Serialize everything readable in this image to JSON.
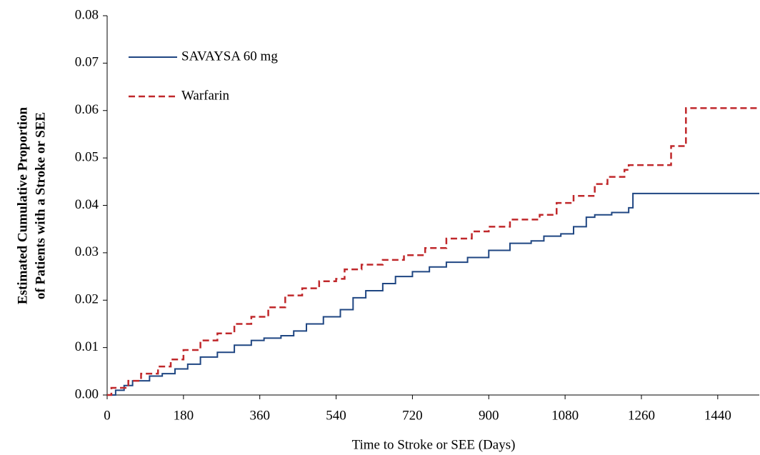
{
  "chart_data": {
    "type": "line",
    "step": true,
    "x_label": "Time to Stroke or SEE (Days)",
    "y_label": [
      "Estimated Cumulative Proportion",
      "of Patients with a Stroke or SEE"
    ],
    "xlim": [
      0,
      1538
    ],
    "xticks": [
      0,
      180,
      360,
      540,
      720,
      900,
      1080,
      1260,
      1440
    ],
    "ylim": [
      0,
      0.08
    ],
    "yticks": [
      {
        "value": 0,
        "label": "0.00"
      },
      0.01,
      0.02,
      0.03,
      0.04,
      0.05,
      0.06,
      0.07,
      0.08
    ],
    "legend": "upper left",
    "series": [
      {
        "name": "SAVAYSA 60 mg",
        "color": "#1f4682",
        "dash": false,
        "x": [
          0,
          20,
          40,
          60,
          100,
          130,
          160,
          190,
          220,
          260,
          300,
          340,
          370,
          410,
          440,
          470,
          510,
          550,
          580,
          610,
          650,
          680,
          720,
          760,
          800,
          850,
          900,
          950,
          1000,
          1030,
          1070,
          1100,
          1130,
          1150,
          1190,
          1230,
          1240,
          1538
        ],
        "values": [
          0,
          0.001,
          0.002,
          0.003,
          0.004,
          0.0045,
          0.0055,
          0.0065,
          0.008,
          0.009,
          0.0105,
          0.0115,
          0.012,
          0.0125,
          0.0135,
          0.015,
          0.0165,
          0.018,
          0.0205,
          0.022,
          0.0235,
          0.025,
          0.026,
          0.027,
          0.028,
          0.029,
          0.0305,
          0.032,
          0.0325,
          0.0335,
          0.034,
          0.0355,
          0.0375,
          0.038,
          0.0385,
          0.0395,
          0.0425,
          0.0425
        ]
      },
      {
        "name": "Warfarin",
        "color": "#c0282b",
        "dash": true,
        "x": [
          0,
          10,
          50,
          80,
          120,
          150,
          180,
          220,
          260,
          300,
          340,
          380,
          420,
          460,
          500,
          540,
          560,
          600,
          650,
          700,
          750,
          800,
          860,
          900,
          950,
          1020,
          1060,
          1100,
          1150,
          1180,
          1220,
          1230,
          1330,
          1365,
          1538
        ],
        "values": [
          0,
          0.0015,
          0.003,
          0.0045,
          0.006,
          0.0075,
          0.0095,
          0.0115,
          0.013,
          0.015,
          0.0165,
          0.0185,
          0.021,
          0.0225,
          0.024,
          0.0245,
          0.0265,
          0.0275,
          0.0285,
          0.0295,
          0.031,
          0.033,
          0.0345,
          0.0355,
          0.037,
          0.038,
          0.0405,
          0.042,
          0.0445,
          0.046,
          0.0475,
          0.0485,
          0.0525,
          0.0605,
          0.0605
        ]
      }
    ]
  }
}
